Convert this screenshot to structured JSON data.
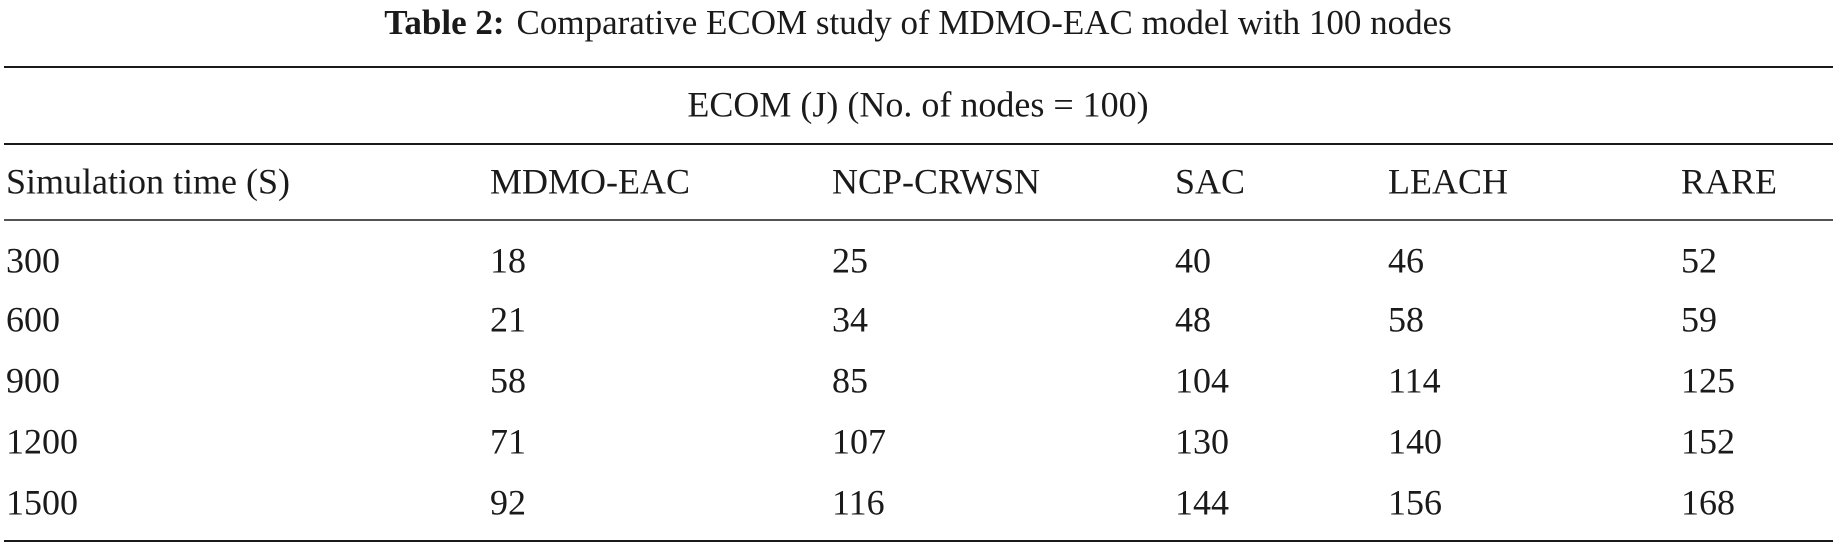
{
  "caption": {
    "label": "Table 2:",
    "text": "Comparative ECOM study of MDMO-EAC model with 100 nodes"
  },
  "table": {
    "spanner": "ECOM (J) (No. of nodes = 100)",
    "columns": [
      "Simulation time (S)",
      "MDMO-EAC",
      "NCP-CRWSN",
      "SAC",
      "LEACH",
      "RARE"
    ],
    "rows": [
      [
        300,
        18,
        25,
        40,
        46,
        52
      ],
      [
        600,
        21,
        34,
        48,
        58,
        59
      ],
      [
        900,
        58,
        85,
        104,
        114,
        125
      ],
      [
        1200,
        71,
        107,
        130,
        140,
        152
      ],
      [
        1500,
        92,
        116,
        144,
        156,
        168
      ]
    ]
  }
}
